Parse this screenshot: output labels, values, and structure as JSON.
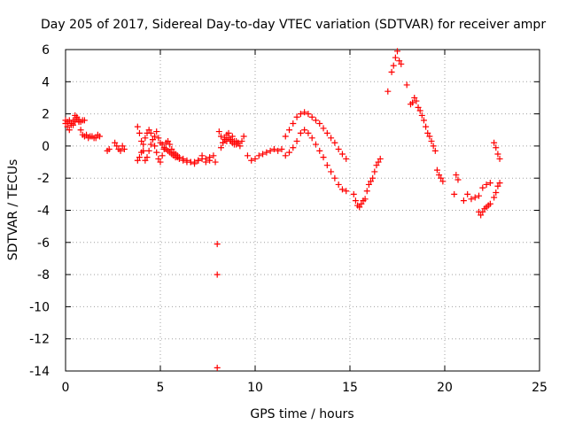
{
  "chart_data": {
    "type": "scatter",
    "title": "Day 205 of 2017, Sidereal Day-to-day VTEC variation (SDTVAR) for receiver ampr",
    "xlabel": "GPS time / hours",
    "ylabel": "SDTVAR / TECUs",
    "xlim": [
      0,
      25
    ],
    "ylim": [
      -14,
      6
    ],
    "xticks": [
      0,
      5,
      10,
      15,
      20,
      25
    ],
    "yticks": [
      -14,
      -12,
      -10,
      -8,
      -6,
      -4,
      -2,
      0,
      2,
      4,
      6
    ],
    "marker": "+",
    "color": "#ff0000",
    "grid": true,
    "series": [
      {
        "name": "SDTVAR",
        "x": [
          0.0,
          0.1,
          0.2,
          0.3,
          0.4,
          0.5,
          0.6,
          0.7,
          0.8,
          0.9,
          1.0,
          1.1,
          1.2,
          1.3,
          1.4,
          1.5,
          1.6,
          1.7,
          1.8,
          0.0,
          0.1,
          0.2,
          0.3,
          0.4,
          0.5,
          0.6,
          0.7,
          0.8,
          0.9,
          1.0,
          2.2,
          2.3,
          2.6,
          2.7,
          2.8,
          2.9,
          3.0,
          3.1,
          3.8,
          3.9,
          4.0,
          4.1,
          4.2,
          4.3,
          4.4,
          4.5,
          4.6,
          4.7,
          4.8,
          4.9,
          5.0,
          5.1,
          5.2,
          5.3,
          5.4,
          5.5,
          5.6,
          5.7,
          5.8,
          5.9,
          6.0,
          6.2,
          6.4,
          6.6,
          6.8,
          7.0,
          7.2,
          7.4,
          7.6,
          3.8,
          3.9,
          4.0,
          4.1,
          4.2,
          4.3,
          4.4,
          4.5,
          4.6,
          4.7,
          4.8,
          4.9,
          5.0,
          5.1,
          5.2,
          5.3,
          5.4,
          5.5,
          5.6,
          5.7,
          5.8,
          5.9,
          6.0,
          6.2,
          6.4,
          6.6,
          6.8,
          7.0,
          7.2,
          7.4,
          7.6,
          7.8,
          7.9,
          8.0,
          8.0,
          8.0,
          8.1,
          8.2,
          8.3,
          8.4,
          8.5,
          8.6,
          8.7,
          8.8,
          8.9,
          9.0,
          9.1,
          9.2,
          9.3,
          9.4,
          8.2,
          8.3,
          8.4,
          8.5,
          8.6,
          8.7,
          8.8,
          8.9,
          9.0,
          9.1,
          9.6,
          9.8,
          10.0,
          10.2,
          10.4,
          10.6,
          10.8,
          11.0,
          11.2,
          11.4,
          11.6,
          11.8,
          12.0,
          12.2,
          12.4,
          12.6,
          12.8,
          13.0,
          13.2,
          13.4,
          13.6,
          13.8,
          14.0,
          14.2,
          14.4,
          14.6,
          14.8,
          11.6,
          11.8,
          12.0,
          12.2,
          12.4,
          12.6,
          12.8,
          13.0,
          13.2,
          13.4,
          13.6,
          13.8,
          14.0,
          14.2,
          14.4,
          14.6,
          14.8,
          15.2,
          15.3,
          15.4,
          15.5,
          15.6,
          15.7,
          15.8,
          15.9,
          16.0,
          16.1,
          16.2,
          16.3,
          16.4,
          16.5,
          16.6,
          17.0,
          17.2,
          17.3,
          17.4,
          17.5,
          17.6,
          17.7,
          18.0,
          18.2,
          18.3,
          18.4,
          18.5,
          18.6,
          18.7,
          18.8,
          18.9,
          19.0,
          19.1,
          19.2,
          19.3,
          19.4,
          19.5,
          19.6,
          19.7,
          19.8,
          19.9,
          20.5,
          20.6,
          20.7,
          21.0,
          21.2,
          21.4,
          21.6,
          21.8,
          22.0,
          22.2,
          22.4,
          21.8,
          21.9,
          22.0,
          22.1,
          22.2,
          22.3,
          22.4,
          22.6,
          22.7,
          22.8,
          22.9,
          22.6,
          22.7,
          22.8,
          22.9
        ],
        "y": [
          1.4,
          1.2,
          1.0,
          1.3,
          1.6,
          1.9,
          1.8,
          1.5,
          1.0,
          0.7,
          0.6,
          0.7,
          0.5,
          0.6,
          0.6,
          0.5,
          0.5,
          0.7,
          0.6,
          1.6,
          1.5,
          1.6,
          1.4,
          1.3,
          1.5,
          1.7,
          1.6,
          1.5,
          1.6,
          1.6,
          -0.3,
          -0.2,
          0.2,
          0.0,
          -0.2,
          -0.3,
          0.0,
          -0.2,
          1.2,
          0.8,
          0.3,
          -0.3,
          -0.9,
          -0.7,
          -0.3,
          0.1,
          0.4,
          0.6,
          0.9,
          0.5,
          0.2,
          0.1,
          -0.1,
          -0.2,
          -0.3,
          -0.4,
          -0.5,
          -0.6,
          -0.7,
          -0.7,
          -0.8,
          -0.9,
          -1.0,
          -1.0,
          -1.1,
          -0.9,
          -0.8,
          -1.0,
          -0.7,
          -0.9,
          -0.7,
          -0.4,
          0.1,
          0.5,
          0.8,
          1.0,
          0.8,
          0.4,
          0.0,
          -0.4,
          -0.8,
          -1.0,
          -0.6,
          -0.2,
          0.2,
          0.3,
          0.1,
          -0.2,
          -0.4,
          -0.5,
          -0.6,
          -0.7,
          -0.8,
          -0.9,
          -1.0,
          -1.0,
          -0.9,
          -0.6,
          -0.8,
          -0.9,
          -0.6,
          -1.0,
          -6.1,
          -8.0,
          -13.8,
          0.9,
          0.6,
          0.2,
          0.4,
          0.7,
          0.5,
          0.3,
          0.2,
          0.3,
          0.1,
          0.2,
          0.0,
          0.3,
          0.6,
          -0.1,
          0.2,
          0.5,
          0.3,
          0.8,
          0.4,
          0.6,
          0.1,
          0.3,
          0.2,
          -0.6,
          -0.9,
          -0.8,
          -0.6,
          -0.5,
          -0.4,
          -0.3,
          -0.2,
          -0.3,
          -0.2,
          0.6,
          1.0,
          1.4,
          1.8,
          2.0,
          2.1,
          2.0,
          1.8,
          1.6,
          1.4,
          1.1,
          0.8,
          0.5,
          0.2,
          -0.2,
          -0.5,
          -0.8,
          -0.6,
          -0.4,
          -0.1,
          0.3,
          0.8,
          1.0,
          0.8,
          0.5,
          0.1,
          -0.3,
          -0.7,
          -1.2,
          -1.6,
          -2.0,
          -2.4,
          -2.7,
          -2.8,
          -3.0,
          -3.4,
          -3.7,
          -3.8,
          -3.6,
          -3.4,
          -3.3,
          -2.8,
          -2.4,
          -2.2,
          -2.0,
          -1.6,
          -1.2,
          -1.0,
          -0.8,
          3.4,
          4.6,
          5.0,
          5.5,
          5.9,
          5.3,
          5.1,
          3.8,
          2.6,
          2.7,
          3.0,
          2.8,
          2.4,
          2.2,
          1.9,
          1.6,
          1.2,
          0.8,
          0.6,
          0.3,
          0.0,
          -0.3,
          -1.5,
          -1.8,
          -2.0,
          -2.2,
          -3.0,
          -1.8,
          -2.1,
          -3.4,
          -3.0,
          -3.3,
          -3.2,
          -3.1,
          -2.6,
          -2.4,
          -2.3,
          -4.1,
          -4.3,
          -4.1,
          -3.9,
          -3.8,
          -3.7,
          -3.6,
          0.2,
          -0.1,
          -0.5,
          -0.8,
          -3.2,
          -2.9,
          -2.5,
          -2.3
        ]
      }
    ]
  }
}
